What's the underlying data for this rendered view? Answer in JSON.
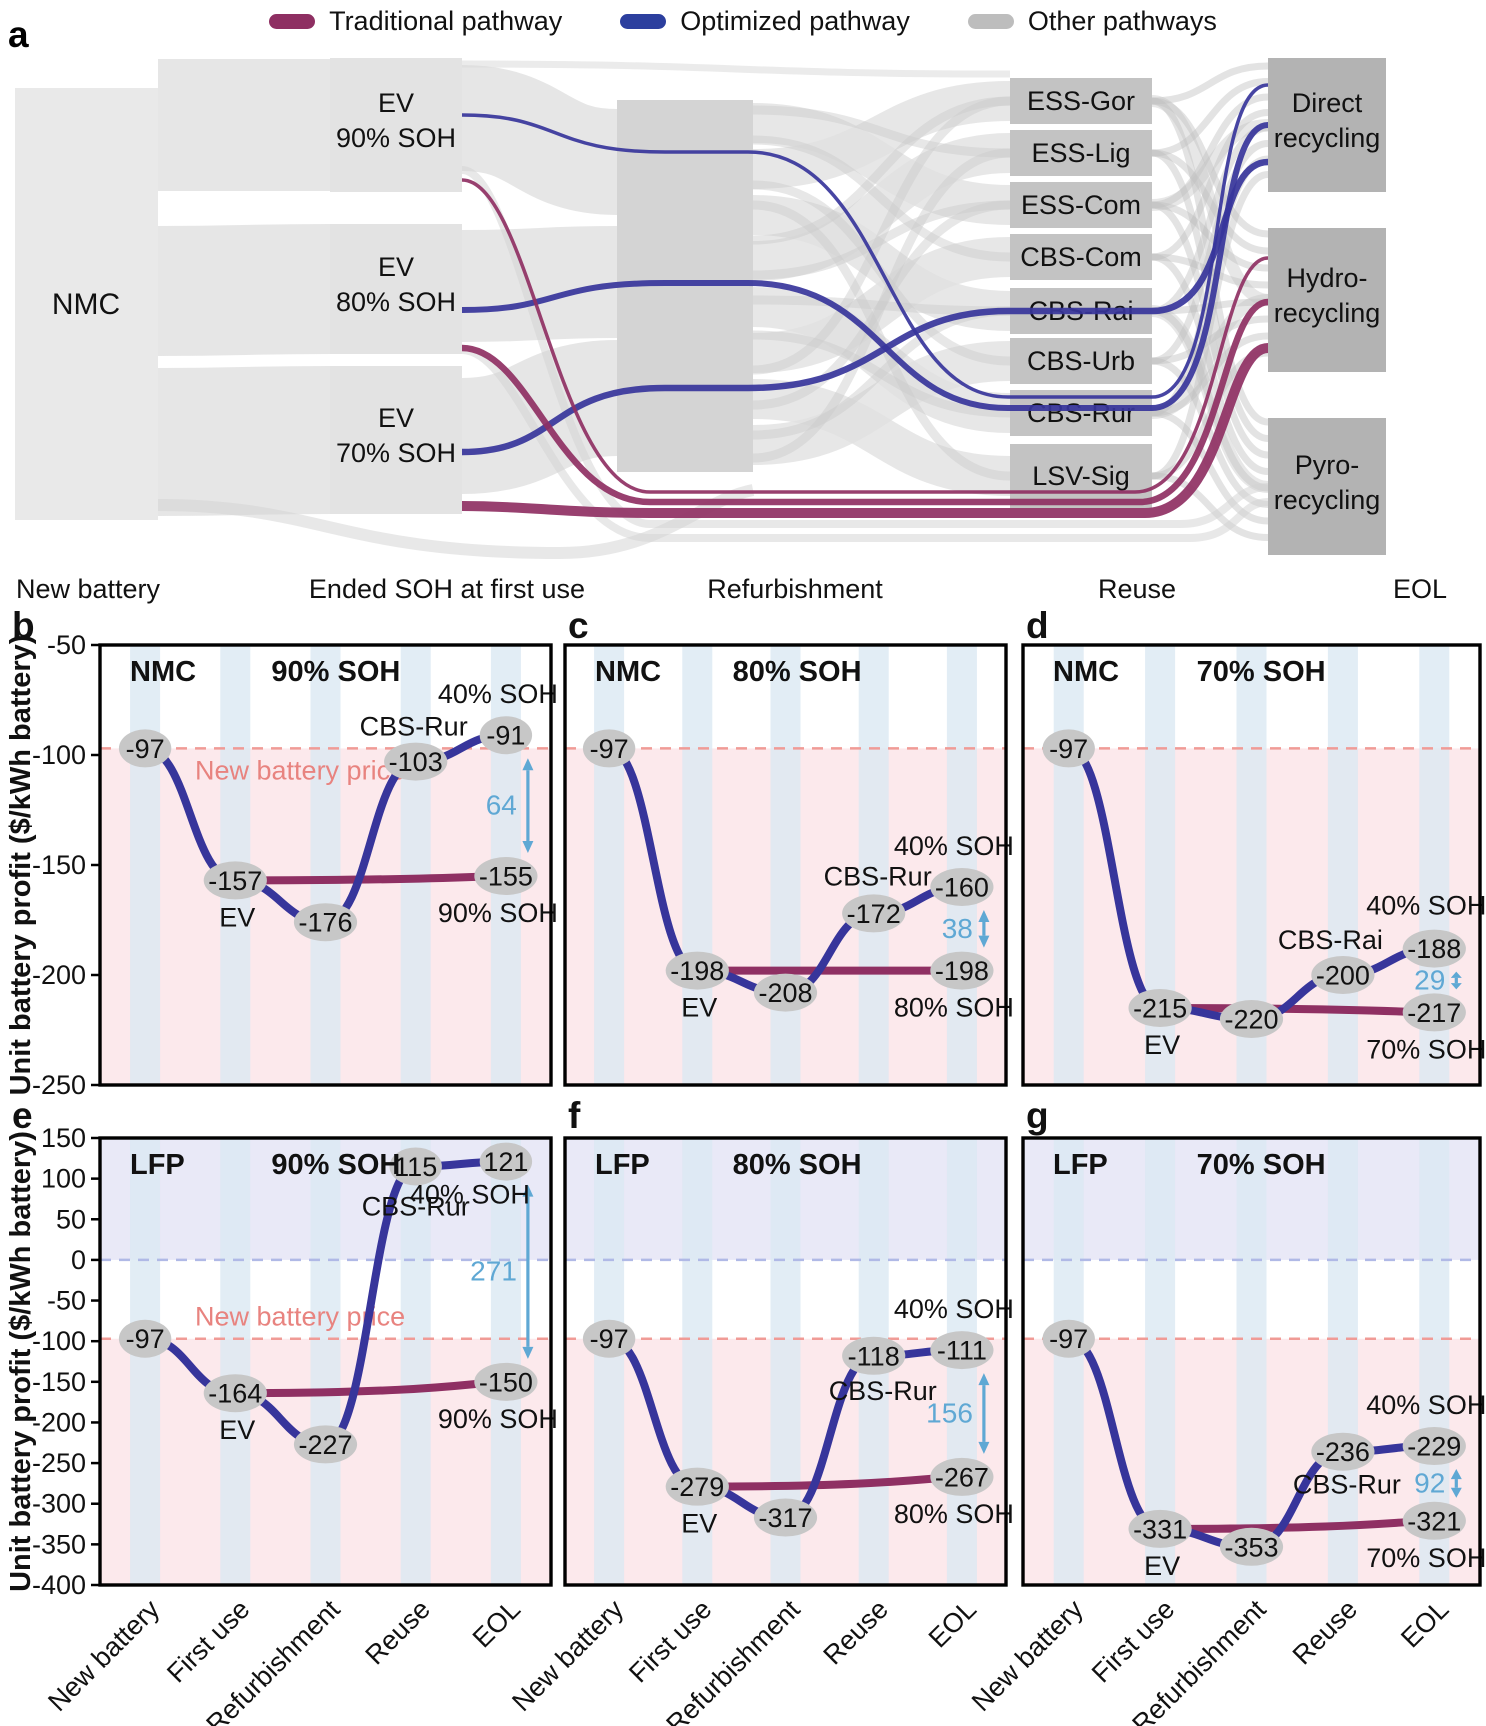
{
  "legend": {
    "items": [
      {
        "label": "Traditional pathway",
        "color": "#8e2f62"
      },
      {
        "label": "Optimized pathway",
        "color": "#2c3f9e"
      },
      {
        "label": "Other pathways",
        "color": "#bdbdbd"
      }
    ]
  },
  "colors": {
    "traditional": "#8f3063",
    "optimized": "#37359b",
    "other_flows": "#dedede",
    "diff_arrow": "#5fa8d4",
    "price_line": "#f09b96",
    "zero_line": "#b0b9e6",
    "stripe": "#dbe9f3",
    "below_price_region": "#fce9ec",
    "profit_region": "#e9e9f7",
    "value_badge": "#c7c7c7"
  },
  "panel_a": {
    "letter": "a",
    "source": "NMC",
    "first_use": [
      {
        "line1": "EV",
        "line2": "90% SOH"
      },
      {
        "line1": "EV",
        "line2": "80% SOH"
      },
      {
        "line1": "EV",
        "line2": "70% SOH"
      }
    ],
    "reuse": [
      "ESS-Gor",
      "ESS-Lig",
      "ESS-Com",
      "CBS-Com",
      "CBS-Rai",
      "CBS-Urb",
      "CBS-Rur",
      "LSV-Sig"
    ],
    "eol": [
      {
        "line1": "Direct",
        "line2": "recycling"
      },
      {
        "line1": "Hydro-",
        "line2": "recycling"
      },
      {
        "line1": "Pyro-",
        "line2": "recycling"
      }
    ],
    "stage_labels": [
      "New battery",
      "Ended SOH at first use",
      "Refurbishment",
      "Reuse",
      "EOL"
    ]
  },
  "y_axis_title": "Unit battery profit ($/kWh battery)",
  "annotations": {
    "price_label": "New battery price"
  },
  "chart_data": [
    {
      "type": "line",
      "panel": "b",
      "material": "NMC",
      "soh_title": "90% SOH",
      "x_categories": [
        "New battery",
        "First use",
        "Refurbishment",
        "Reuse",
        "EOL"
      ],
      "ylim": [
        -250,
        -50
      ],
      "yticks": [
        -50,
        -100,
        -150,
        -200,
        -250
      ],
      "new_battery_price": -97,
      "show_price_label": true,
      "series": [
        {
          "name": "Optimized pathway",
          "values": [
            -97,
            -157,
            -176,
            -103,
            -91
          ]
        },
        {
          "name": "Traditional pathway",
          "x": [
            "First use",
            "EOL"
          ],
          "values": [
            -157,
            -155
          ]
        }
      ],
      "labels": {
        "ev": "EV",
        "reuse": "CBS-Rur",
        "eol_top": "40% SOH",
        "eol_bottom": "90% SOH"
      },
      "difference": 64
    },
    {
      "type": "line",
      "panel": "c",
      "material": "NMC",
      "soh_title": "80% SOH",
      "x_categories": [
        "New battery",
        "First use",
        "Refurbishment",
        "Reuse",
        "EOL"
      ],
      "ylim": [
        -250,
        -50
      ],
      "yticks": [
        -50,
        -100,
        -150,
        -200,
        -250
      ],
      "new_battery_price": -97,
      "show_price_label": false,
      "series": [
        {
          "name": "Optimized pathway",
          "values": [
            -97,
            -198,
            -208,
            -172,
            -160
          ]
        },
        {
          "name": "Traditional pathway",
          "x": [
            "First use",
            "EOL"
          ],
          "values": [
            -198,
            -198
          ]
        }
      ],
      "labels": {
        "ev": "EV",
        "reuse": "CBS-Rur",
        "eol_top": "40% SOH",
        "eol_bottom": "80% SOH"
      },
      "difference": 38
    },
    {
      "type": "line",
      "panel": "d",
      "material": "NMC",
      "soh_title": "70% SOH",
      "x_categories": [
        "New battery",
        "First use",
        "Refurbishment",
        "Reuse",
        "EOL"
      ],
      "ylim": [
        -250,
        -50
      ],
      "yticks": [
        -50,
        -100,
        -150,
        -200,
        -250
      ],
      "new_battery_price": -97,
      "show_price_label": false,
      "series": [
        {
          "name": "Optimized pathway",
          "values": [
            -97,
            -215,
            -220,
            -200,
            -188
          ]
        },
        {
          "name": "Traditional pathway",
          "x": [
            "First use",
            "EOL"
          ],
          "values": [
            -215,
            -217
          ]
        }
      ],
      "labels": {
        "ev": "EV",
        "reuse": "CBS-Rai",
        "eol_top": "40% SOH",
        "eol_bottom": "70% SOH"
      },
      "difference": 29
    },
    {
      "type": "line",
      "panel": "e",
      "material": "LFP",
      "soh_title": "90% SOH",
      "x_categories": [
        "New battery",
        "First use",
        "Refurbishment",
        "Reuse",
        "EOL"
      ],
      "ylim": [
        -400,
        150
      ],
      "yticks": [
        150,
        100,
        50,
        0,
        -50,
        -100,
        -150,
        -200,
        -250,
        -300,
        -350,
        -400
      ],
      "new_battery_price": -97,
      "show_price_label": true,
      "series": [
        {
          "name": "Optimized pathway",
          "values": [
            -97,
            -164,
            -227,
            115,
            121
          ]
        },
        {
          "name": "Traditional pathway",
          "x": [
            "First use",
            "EOL"
          ],
          "values": [
            -164,
            -150
          ]
        }
      ],
      "labels": {
        "ev": "EV",
        "reuse": "CBS-Rur",
        "eol_top": "40% SOH",
        "eol_bottom": "90% SOH"
      },
      "difference": 271
    },
    {
      "type": "line",
      "panel": "f",
      "material": "LFP",
      "soh_title": "80% SOH",
      "x_categories": [
        "New battery",
        "First use",
        "Refurbishment",
        "Reuse",
        "EOL"
      ],
      "ylim": [
        -400,
        150
      ],
      "yticks": [
        150,
        100,
        50,
        0,
        -50,
        -100,
        -150,
        -200,
        -250,
        -300,
        -350,
        -400
      ],
      "new_battery_price": -97,
      "show_price_label": false,
      "series": [
        {
          "name": "Optimized pathway",
          "values": [
            -97,
            -279,
            -317,
            -118,
            -111
          ]
        },
        {
          "name": "Traditional pathway",
          "x": [
            "First use",
            "EOL"
          ],
          "values": [
            -279,
            -267
          ]
        }
      ],
      "labels": {
        "ev": "EV",
        "reuse": "CBS-Rur",
        "eol_top": "40% SOH",
        "eol_bottom": "80% SOH"
      },
      "difference": 156
    },
    {
      "type": "line",
      "panel": "g",
      "material": "LFP",
      "soh_title": "70% SOH",
      "x_categories": [
        "New battery",
        "First use",
        "Refurbishment",
        "Reuse",
        "EOL"
      ],
      "ylim": [
        -400,
        150
      ],
      "yticks": [
        150,
        100,
        50,
        0,
        -50,
        -100,
        -150,
        -200,
        -250,
        -300,
        -350,
        -400
      ],
      "new_battery_price": -97,
      "show_price_label": false,
      "series": [
        {
          "name": "Optimized pathway",
          "values": [
            -97,
            -331,
            -353,
            -236,
            -229
          ]
        },
        {
          "name": "Traditional pathway",
          "x": [
            "First use",
            "EOL"
          ],
          "values": [
            -331,
            -321
          ]
        }
      ],
      "labels": {
        "ev": "EV",
        "reuse": "CBS-Rur",
        "eol_top": "40% SOH",
        "eol_bottom": "70% SOH"
      },
      "difference": 92
    }
  ]
}
